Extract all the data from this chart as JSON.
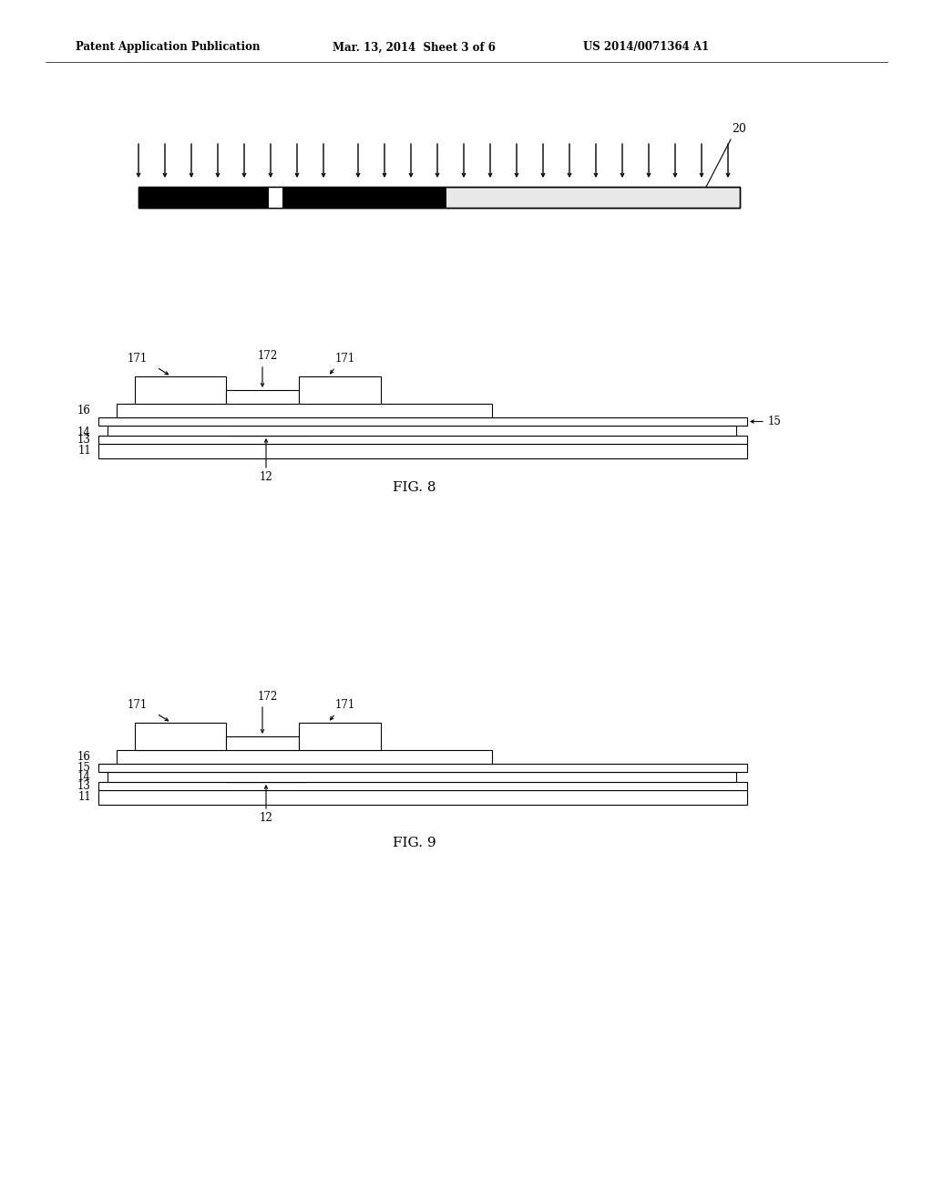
{
  "bg_color": "#ffffff",
  "header_left": "Patent Application Publication",
  "header_mid": "Mar. 13, 2014  Sheet 3 of 6",
  "header_right": "US 2014/0071364 A1",
  "fig8_label": "FIG. 8",
  "fig9_label": "FIG. 9",
  "lc": "#000000",
  "bc": "#000000",
  "wc": "#ffffff",
  "fc": "#ffffff"
}
